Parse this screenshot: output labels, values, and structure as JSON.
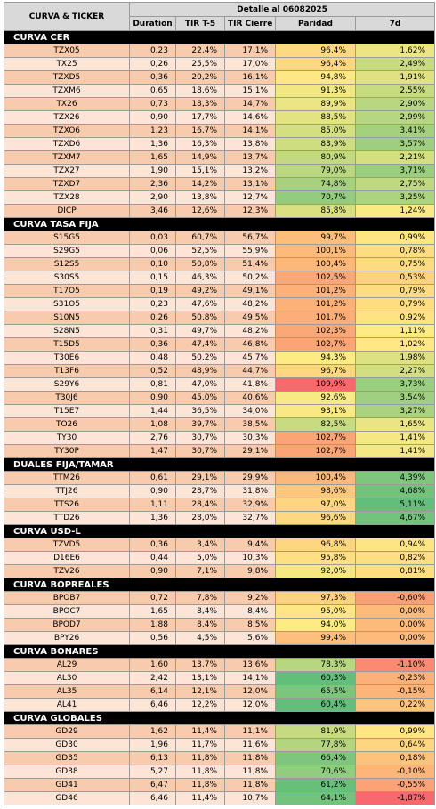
{
  "header": {
    "first_column": "CURVA & TICKER",
    "title": "Detalle al 06082025",
    "columns": [
      "Duration",
      "TIR T-5",
      "TIR Cierre",
      "Paridad",
      "7d"
    ]
  },
  "sections": [
    {
      "title": "CURVA CER",
      "rows": [
        [
          "TZX05",
          "0,23",
          "22,4%",
          "17,1%",
          "96,4%",
          "1,62%"
        ],
        [
          "TX25",
          "0,26",
          "25,5%",
          "17,0%",
          "96,4%",
          "2,49%"
        ],
        [
          "TZXD5",
          "0,36",
          "20,2%",
          "16,1%",
          "94,8%",
          "1,91%"
        ],
        [
          "TZXM6",
          "0,65",
          "18,6%",
          "15,1%",
          "91,3%",
          "2,55%"
        ],
        [
          "TX26",
          "0,73",
          "18,3%",
          "14,7%",
          "89,9%",
          "2,90%"
        ],
        [
          "TZX26",
          "0,90",
          "17,7%",
          "14,6%",
          "88,5%",
          "2,99%"
        ],
        [
          "TZXO6",
          "1,23",
          "16,7%",
          "14,1%",
          "85,0%",
          "3,41%"
        ],
        [
          "TZXD6",
          "1,36",
          "16,3%",
          "13,8%",
          "83,9%",
          "3,57%"
        ],
        [
          "TZXM7",
          "1,65",
          "14,9%",
          "13,7%",
          "80,9%",
          "2,21%"
        ],
        [
          "TZX27",
          "1,90",
          "15,1%",
          "13,2%",
          "79,0%",
          "3,71%"
        ],
        [
          "TZXD7",
          "2,36",
          "14,2%",
          "13,1%",
          "74,8%",
          "2,75%"
        ],
        [
          "TZX28",
          "2,90",
          "13,8%",
          "12,7%",
          "70,7%",
          "3,25%"
        ],
        [
          "DICP",
          "3,46",
          "12,6%",
          "12,3%",
          "85,8%",
          "1,24%"
        ]
      ]
    },
    {
      "title": "CURVA TASA FIJA",
      "rows": [
        [
          "S15G5",
          "0,03",
          "60,7%",
          "56,7%",
          "99,7%",
          "0,99%"
        ],
        [
          "S29G5",
          "0,06",
          "52,5%",
          "55,9%",
          "100,1%",
          "0,78%"
        ],
        [
          "S12S5",
          "0,10",
          "50,8%",
          "51,4%",
          "100,4%",
          "0,75%"
        ],
        [
          "S30S5",
          "0,15",
          "46,3%",
          "50,2%",
          "102,5%",
          "0,53%"
        ],
        [
          "T17O5",
          "0,19",
          "49,2%",
          "49,1%",
          "101,2%",
          "0,79%"
        ],
        [
          "S31O5",
          "0,23",
          "47,6%",
          "48,2%",
          "101,2%",
          "0,79%"
        ],
        [
          "S10N5",
          "0,26",
          "50,8%",
          "49,5%",
          "101,7%",
          "0,92%"
        ],
        [
          "S28N5",
          "0,31",
          "49,7%",
          "48,2%",
          "102,3%",
          "1,11%"
        ],
        [
          "T15D5",
          "0,36",
          "47,4%",
          "46,8%",
          "102,7%",
          "1,02%"
        ],
        [
          "T30E6",
          "0,48",
          "50,2%",
          "45,7%",
          "94,3%",
          "1,98%"
        ],
        [
          "T13F6",
          "0,52",
          "48,9%",
          "44,7%",
          "96,7%",
          "2,27%"
        ],
        [
          "S29Y6",
          "0,81",
          "47,0%",
          "41,8%",
          "109,9%",
          "3,73%"
        ],
        [
          "T30J6",
          "0,90",
          "45,0%",
          "40,6%",
          "92,6%",
          "3,54%"
        ],
        [
          "T15E7",
          "1,44",
          "36,5%",
          "34,0%",
          "93,1%",
          "3,27%"
        ],
        [
          "TO26",
          "1,08",
          "39,7%",
          "38,5%",
          "82,5%",
          "1,65%"
        ],
        [
          "TY30",
          "2,76",
          "30,7%",
          "30,3%",
          "102,7%",
          "1,41%"
        ],
        [
          "TY30P",
          "1,47",
          "30,7%",
          "29,1%",
          "102,7%",
          "1,41%"
        ]
      ]
    },
    {
      "title": "DUALES FIJA/TAMAR",
      "rows": [
        [
          "TTM26",
          "0,61",
          "29,1%",
          "29,9%",
          "100,4%",
          "4,39%"
        ],
        [
          "TTJ26",
          "0,90",
          "28,7%",
          "31,8%",
          "98,6%",
          "4,68%"
        ],
        [
          "TTS26",
          "1,11",
          "28,4%",
          "32,9%",
          "97,0%",
          "5,11%"
        ],
        [
          "TTD26",
          "1,36",
          "28,0%",
          "32,7%",
          "96,6%",
          "4,67%"
        ]
      ]
    },
    {
      "title": "CURVA USD-L",
      "rows": [
        [
          "TZVD5",
          "0,36",
          "3,4%",
          "9,4%",
          "96,8%",
          "0,94%"
        ],
        [
          "D16E6",
          "0,44",
          "5,0%",
          "10,3%",
          "95,8%",
          "0,82%"
        ],
        [
          "TZV26",
          "0,90",
          "7,1%",
          "9,8%",
          "92,0%",
          "0,81%"
        ]
      ]
    },
    {
      "title": "CURVA BOPREALES",
      "rows": [
        [
          "BPOB7",
          "0,72",
          "7,8%",
          "9,2%",
          "97,3%",
          "-0,60%"
        ],
        [
          "BPOC7",
          "1,65",
          "8,4%",
          "8,4%",
          "95,0%",
          "0,00%"
        ],
        [
          "BPOD7",
          "1,88",
          "8,4%",
          "8,5%",
          "94,0%",
          "0,00%"
        ],
        [
          "BPY26",
          "0,56",
          "4,5%",
          "5,6%",
          "99,4%",
          "0,00%"
        ]
      ]
    },
    {
      "title": "CURVA BONARES",
      "rows": [
        [
          "AL29",
          "1,60",
          "13,7%",
          "13,6%",
          "78,3%",
          "-1,10%"
        ],
        [
          "AL30",
          "2,42",
          "13,1%",
          "14,1%",
          "60,3%",
          "-0,23%"
        ],
        [
          "AL35",
          "6,14",
          "12,1%",
          "12,0%",
          "65,5%",
          "-0,15%"
        ],
        [
          "AL41",
          "6,46",
          "12,2%",
          "12,0%",
          "60,4%",
          "0,22%"
        ]
      ]
    },
    {
      "title": "CURVA GLOBALES",
      "rows": [
        [
          "GD29",
          "1,62",
          "11,4%",
          "11,1%",
          "81,9%",
          "0,99%"
        ],
        [
          "GD30",
          "1,96",
          "11,7%",
          "11,6%",
          "77,8%",
          "0,64%"
        ],
        [
          "GD35",
          "6,13",
          "11,8%",
          "11,8%",
          "66,4%",
          "0,18%"
        ],
        [
          "GD38",
          "5,27",
          "11,8%",
          "11,8%",
          "70,6%",
          "-0,10%"
        ],
        [
          "GD41",
          "6,47",
          "11,8%",
          "11,8%",
          "61,2%",
          "-0,55%"
        ],
        [
          "GD46",
          "6,46",
          "11,4%",
          "10,7%",
          "64,1%",
          "-1,87%"
        ]
      ]
    }
  ]
}
